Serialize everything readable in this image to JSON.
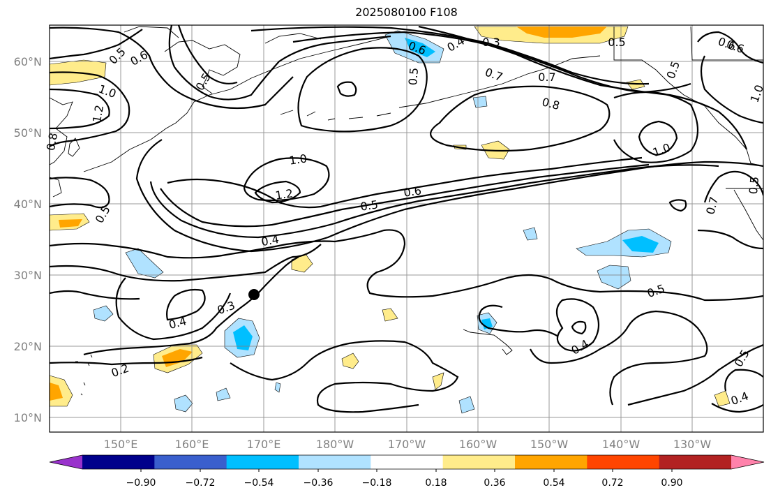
{
  "title": "2025080100 F108",
  "map": {
    "projection": "PlateCarree",
    "lon_range_deg_east": [
      140,
      240
    ],
    "lat_range_deg": [
      8,
      65
    ],
    "lat_ticks": [
      "10°N",
      "20°N",
      "30°N",
      "40°N",
      "50°N",
      "60°N"
    ],
    "lon_ticks": [
      "150°E",
      "160°E",
      "170°E",
      "180°W",
      "170°W",
      "160°W",
      "150°W",
      "140°W",
      "130°W"
    ],
    "gridlines": true,
    "coastline_color": "#000000",
    "contour_color": "#000000",
    "contour_labels": [
      "0.5",
      "0.6",
      "0.5",
      "1.0",
      "1.2",
      "0.8",
      "0.6",
      "0.4",
      "0.3",
      "0.7",
      "0.5",
      "0.6",
      "0.5",
      "0.5",
      "0.7",
      "0.8",
      "1.0",
      "1.2",
      "1.0",
      "0.6",
      "0.5",
      "0.4",
      "0.3",
      "0.4",
      "0.2",
      "0.5",
      "0.4",
      "0.4",
      "0.5",
      "0.7",
      "0.5",
      "0.6",
      "0.5",
      "1.0"
    ],
    "marker": {
      "label": "station-marker",
      "color": "#000000"
    }
  },
  "colorbar": {
    "tick_labels": [
      "−0.90",
      "−0.72",
      "−0.54",
      "−0.36",
      "−0.18",
      "0.18",
      "0.36",
      "0.54",
      "0.72",
      "0.90"
    ],
    "colors": [
      "#9932cc",
      "#00008b",
      "#3a5fcd",
      "#00bfff",
      "#b0e2ff",
      "#ffffff",
      "#ffec8b",
      "#ffa500",
      "#ff4500",
      "#b22222",
      "#ff82ab"
    ],
    "extend": "both"
  }
}
